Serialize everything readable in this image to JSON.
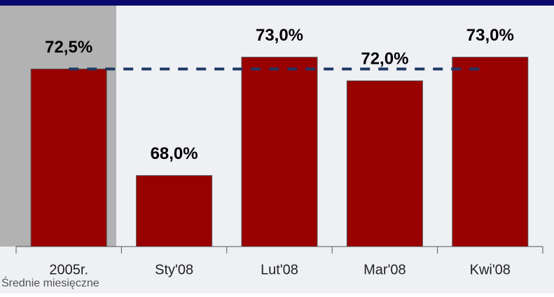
{
  "chart_data": {
    "type": "bar",
    "categories": [
      "2005r.",
      "Sty'08",
      "Lut'08",
      "Mar'08",
      "Kwi'08"
    ],
    "values": [
      72.5,
      68.0,
      73.0,
      72.0,
      73.0
    ],
    "value_labels": [
      "72,5%",
      "68,0%",
      "73,0%",
      "72,0%",
      "73,0%"
    ],
    "color": "#990000",
    "ylim": [
      65,
      75
    ],
    "reference_value": 72.5,
    "reference_color": "#1f3864",
    "footnote": "Średnie miesięczne"
  }
}
